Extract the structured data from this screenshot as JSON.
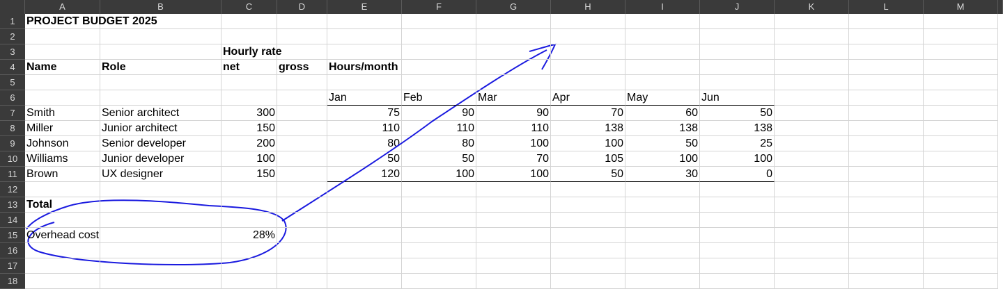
{
  "columns": [
    "A",
    "B",
    "C",
    "D",
    "E",
    "F",
    "G",
    "H",
    "I",
    "J",
    "K",
    "L",
    "M"
  ],
  "rows": [
    "1",
    "2",
    "3",
    "4",
    "5",
    "6",
    "7",
    "8",
    "9",
    "10",
    "11",
    "12",
    "13",
    "14",
    "15",
    "16",
    "17",
    "18"
  ],
  "cells": {
    "A1": "PROJECT BUDGET 2025",
    "C3": "Hourly rate",
    "A4": "Name",
    "B4": "Role",
    "C4": "net",
    "D4": "gross",
    "E4": "Hours/month",
    "E6": "Jan",
    "F6": "Feb",
    "G6": "Mar",
    "H6": "Apr",
    "I6": "May",
    "J6": "Jun",
    "A7": "Smith",
    "B7": "Senior architect",
    "C7": "300",
    "E7": "75",
    "F7": "90",
    "G7": "90",
    "H7": "70",
    "I7": "60",
    "J7": "50",
    "A8": "Miller",
    "B8": "Junior architect",
    "C8": "150",
    "E8": "110",
    "F8": "110",
    "G8": "110",
    "H8": "138",
    "I8": "138",
    "J8": "138",
    "A9": "Johnson",
    "B9": "Senior developer",
    "C9": "200",
    "E9": "80",
    "F9": "80",
    "G9": "100",
    "H9": "100",
    "I9": "50",
    "J9": "25",
    "A10": "Williams",
    "B10": "Junior developer",
    "C10": "100",
    "E10": "50",
    "F10": "50",
    "G10": "70",
    "H10": "105",
    "I10": "100",
    "J10": "100",
    "A11": "Brown",
    "B11": "UX designer",
    "C11": "150",
    "E11": "120",
    "F11": "100",
    "G11": "100",
    "H11": "50",
    "I11": "30",
    "J11": "0",
    "A13": "Total",
    "A15": "Overhead cost",
    "C15": "28%"
  },
  "styles": {
    "header_bg": "#3a3a3a",
    "header_text": "#d8d8d8",
    "gridline": "#d4d4d4",
    "annotation_color": "#1a1adf"
  },
  "annotation": {
    "type": "freehand",
    "description": "blue pen loop around Overhead cost row with arrow to the top-right"
  }
}
